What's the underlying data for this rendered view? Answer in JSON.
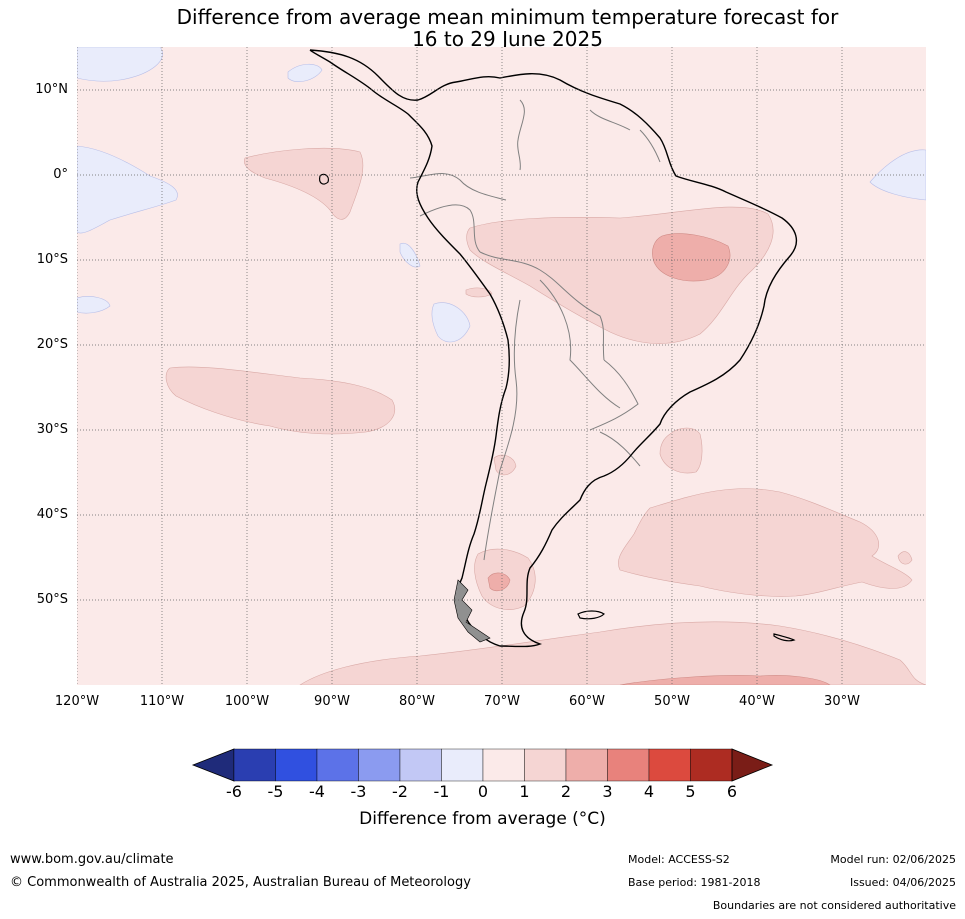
{
  "title": {
    "line1": "Difference from average mean minimum temperature forecast for",
    "line2": "16 to 29 June 2025"
  },
  "map": {
    "lat_labels": [
      "10°N",
      "0°",
      "10°S",
      "20°S",
      "30°S",
      "40°S",
      "50°S"
    ],
    "lon_labels": [
      "120°W",
      "110°W",
      "100°W",
      "90°W",
      "80°W",
      "70°W",
      "60°W",
      "50°W",
      "40°W",
      "30°W"
    ],
    "colors": {
      "background": "#fbeae9",
      "cool": "#e9ecfb",
      "warm1": "#f5d5d3",
      "warm2": "#eeaeaa",
      "coast": "#000000",
      "border": "#808080",
      "grid": "#606060"
    }
  },
  "colorbar": {
    "ticks": [
      "-6",
      "-5",
      "-4",
      "-3",
      "-2",
      "-1",
      "0",
      "1",
      "2",
      "3",
      "4",
      "5",
      "6"
    ],
    "colors": [
      "#1f2b7a",
      "#2a3eb1",
      "#3050e0",
      "#5c72e8",
      "#8b9bf0",
      "#c2c8f5",
      "#e9ecfb",
      "#fbeae9",
      "#f5d5d3",
      "#eeaeaa",
      "#e8827c",
      "#dc4a3e",
      "#ad2c22",
      "#7a1d17"
    ],
    "label": "Difference from average (°C)"
  },
  "footer": {
    "website": "www.bom.gov.au/climate",
    "copyright": "© Commonwealth of Australia 2025, Australian Bureau of Meteorology",
    "model": "Model: ACCESS-S2",
    "base_period": "Base period: 1981-2018",
    "model_run": "Model run: 02/06/2025",
    "issued": "Issued: 04/06/2025",
    "disclaimer": "Boundaries are not considered authoritative"
  }
}
